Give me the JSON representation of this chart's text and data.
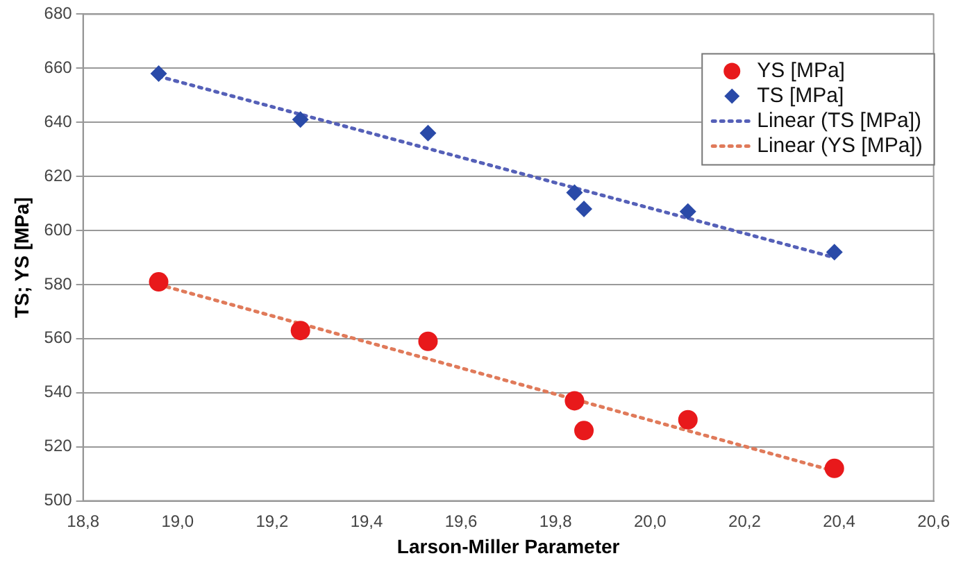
{
  "chart_data": {
    "type": "scatter",
    "xlabel": "Larson-Miller Parameter",
    "ylabel": "TS; YS [MPa]",
    "xlim": [
      18.8,
      20.6
    ],
    "xticks": [
      {
        "value": 18.8,
        "label": "18,8"
      },
      {
        "value": 19.0,
        "label": "19,0"
      },
      {
        "value": 19.2,
        "label": "19,2"
      },
      {
        "value": 19.4,
        "label": "19,4"
      },
      {
        "value": 19.6,
        "label": "19,6"
      },
      {
        "value": 19.8,
        "label": "19,8"
      },
      {
        "value": 20.0,
        "label": "20,0"
      },
      {
        "value": 20.2,
        "label": "20,2"
      },
      {
        "value": 20.4,
        "label": "20,4"
      },
      {
        "value": 20.6,
        "label": "20,6"
      }
    ],
    "ylim": [
      500,
      680
    ],
    "yticks": [
      500,
      520,
      540,
      560,
      580,
      600,
      620,
      640,
      660,
      680
    ],
    "grid": "y",
    "legend": "top right",
    "series": [
      {
        "name": "YS [MPa]",
        "color": "#e8191b",
        "marker": "circle",
        "x": [
          18.96,
          19.26,
          19.53,
          19.84,
          19.86,
          20.08,
          20.39
        ],
        "values": [
          581,
          563,
          559,
          537,
          526,
          530,
          512
        ]
      },
      {
        "name": "TS [MPa]",
        "color": "#2a4aa8",
        "marker": "diamond",
        "x": [
          18.96,
          19.26,
          19.53,
          19.84,
          19.86,
          20.08,
          20.39
        ],
        "values": [
          658,
          641,
          636,
          614,
          608,
          607,
          592
        ]
      },
      {
        "name": "Linear (TS [MPa])",
        "type": "line",
        "color": "#5560b8",
        "line_style": "dotted",
        "marker": "none",
        "x": [
          18.96,
          20.39
        ],
        "values": [
          657,
          590
        ]
      },
      {
        "name": "Linear (YS [MPa])",
        "type": "line",
        "color": "#e07a5a",
        "line_style": "dotted",
        "marker": "none",
        "x": [
          18.96,
          20.39
        ],
        "values": [
          580,
          511
        ]
      }
    ]
  }
}
